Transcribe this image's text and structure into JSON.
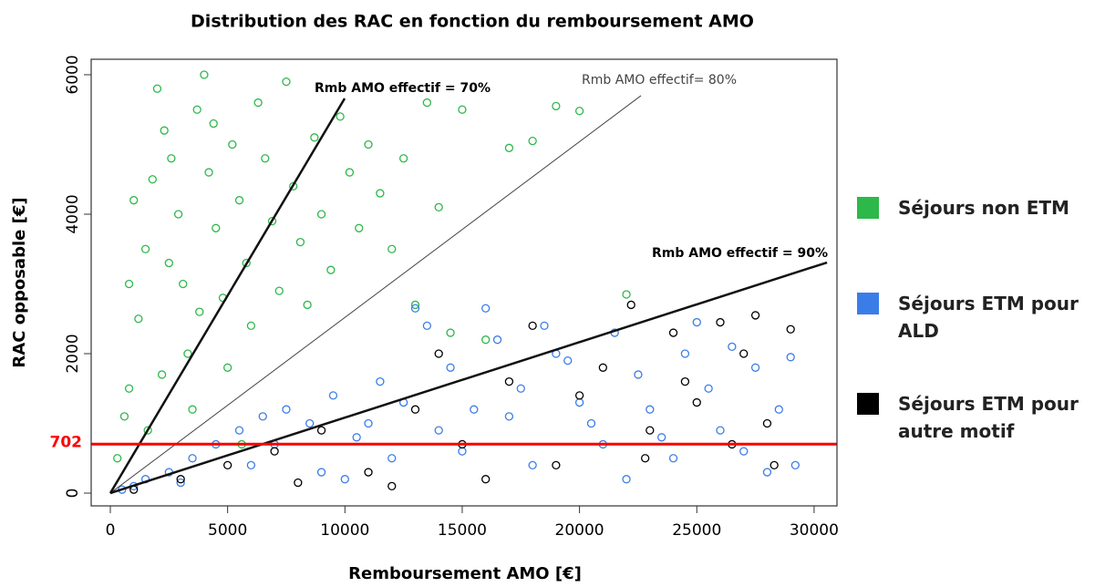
{
  "chart_data": {
    "type": "scatter",
    "title": "Distribution des RAC en fonction du remboursement  AMO",
    "x_label": "Remboursement AMO [€]",
    "y_label": "RAC opposable [€]",
    "xlim": [
      -816,
      30975
    ],
    "ylim": [
      -183,
      6222
    ],
    "xticks": [
      0,
      5000,
      10000,
      15000,
      20000,
      25000,
      30000
    ],
    "yticks": [
      0,
      2000,
      4000,
      6000
    ],
    "legend": "right",
    "series": [
      {
        "name": "Séjours non ETM",
        "color": "#2db84a",
        "x": [
          300,
          800,
          1200,
          1500,
          1800,
          2000,
          2300,
          2600,
          2900,
          3100,
          3300,
          3500,
          3700,
          4000,
          4200,
          4500,
          4800,
          5000,
          5200,
          5500,
          5800,
          6000,
          6300,
          6600,
          6900,
          7200,
          7500,
          7800,
          8100,
          8400,
          8700,
          9000,
          9400,
          9800,
          10200,
          10600,
          11000,
          11500,
          12000,
          12500,
          13000,
          13500,
          14000,
          14500,
          15000,
          16000,
          17000,
          18000,
          19000,
          20000,
          22000,
          800,
          1000,
          2500,
          3800,
          1600,
          2200,
          600,
          4400,
          5600
        ],
        "values": [
          500,
          1500,
          2500,
          3500,
          4500,
          5800,
          5200,
          4800,
          4000,
          3000,
          2000,
          1200,
          5500,
          6000,
          4600,
          3800,
          2800,
          1800,
          5000,
          4200,
          3300,
          2400,
          5600,
          4800,
          3900,
          2900,
          5900,
          4400,
          3600,
          2700,
          5100,
          4000,
          3200,
          5400,
          4600,
          3800,
          5000,
          4300,
          3500,
          4800,
          2700,
          5600,
          4100,
          2300,
          5500,
          2200,
          4950,
          5050,
          5550,
          5480,
          2850,
          3000,
          4200,
          3300,
          2600,
          900,
          1700,
          1100,
          5300,
          700
        ]
      },
      {
        "name": "Séjours ETM pour ALD",
        "color": "#3b7de8",
        "x": [
          500,
          1500,
          2500,
          3500,
          4500,
          5500,
          6500,
          7500,
          8500,
          9500,
          10500,
          11500,
          12500,
          13500,
          14500,
          15500,
          16500,
          17500,
          18500,
          19500,
          20500,
          21500,
          22500,
          23500,
          24500,
          25500,
          26500,
          27500,
          28500,
          29000,
          1000,
          3000,
          6000,
          9000,
          12000,
          15000,
          18000,
          21000,
          24000,
          27000,
          29200,
          7000,
          11000,
          14000,
          17000,
          20000,
          23000,
          26000,
          28000,
          16000,
          13000,
          19000,
          22000,
          25000,
          10000
        ],
        "values": [
          50,
          200,
          300,
          500,
          700,
          900,
          1100,
          1200,
          1000,
          1400,
          800,
          1600,
          1300,
          2400,
          1800,
          1200,
          2200,
          1500,
          2400,
          1900,
          1000,
          2300,
          1700,
          800,
          2000,
          1500,
          2100,
          1800,
          1200,
          1950,
          100,
          150,
          400,
          300,
          500,
          600,
          400,
          700,
          500,
          600,
          400,
          700,
          1000,
          900,
          1100,
          1300,
          1200,
          900,
          300,
          2650,
          2650,
          2000,
          200,
          2450,
          200
        ]
      },
      {
        "name": "Séjours ETM pour autre motif",
        "color": "#000000",
        "x": [
          1000,
          3000,
          5000,
          7000,
          9000,
          11000,
          13000,
          15000,
          17000,
          19000,
          21000,
          22200,
          23000,
          24000,
          25000,
          26000,
          27000,
          27500,
          28000,
          28300,
          29000,
          14000,
          16000,
          18000,
          20000,
          12000,
          8000,
          22800,
          26500,
          24500
        ],
        "values": [
          50,
          200,
          400,
          600,
          900,
          300,
          1200,
          700,
          1600,
          400,
          1800,
          2700,
          900,
          2300,
          1300,
          2450,
          2000,
          2550,
          1000,
          400,
          2350,
          2000,
          200,
          2400,
          1400,
          100,
          150,
          500,
          700,
          1600
        ]
      }
    ],
    "reference_lines": [
      {
        "label": "Rmb AMO effectif = 70%",
        "x": [
          0,
          9990
        ],
        "y": [
          0,
          5660
        ],
        "bold": true
      },
      {
        "label": "Rmb AMO effectif= 80%",
        "x": [
          0,
          22620
        ],
        "y": [
          0,
          5700
        ],
        "bold": false
      },
      {
        "label": "Rmb AMO effectif = 90%",
        "x": [
          0,
          30550
        ],
        "y": [
          0,
          3307
        ],
        "bold": true
      }
    ],
    "hline": {
      "value": 702,
      "color": "#ff0000"
    }
  }
}
